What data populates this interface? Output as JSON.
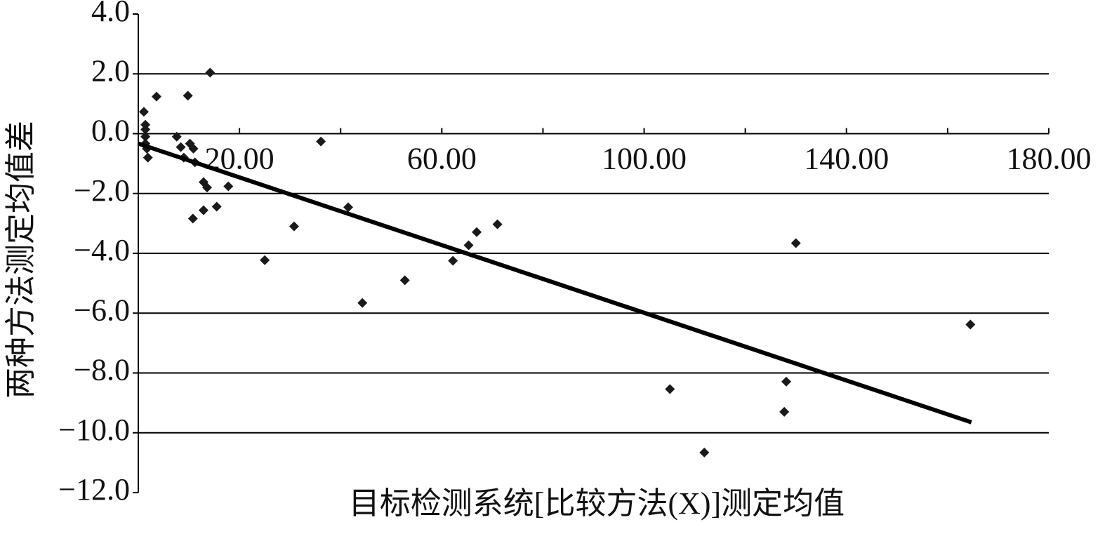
{
  "chart_data": {
    "type": "scatter",
    "xlabel": "目标检测系统[比较方法(X)]测定均值",
    "ylabel": "两种方法测定均值差",
    "xlim": [
      0,
      180
    ],
    "ylim": [
      -12,
      4
    ],
    "xticks": [
      {
        "value": 20,
        "label": "20.00"
      },
      {
        "value": 60,
        "label": "60.00"
      },
      {
        "value": 100,
        "label": "100.00"
      },
      {
        "value": 140,
        "label": "140.00"
      },
      {
        "value": 180,
        "label": "180.00"
      }
    ],
    "xminor_ticks": [
      40,
      80,
      120,
      160
    ],
    "yticks": [
      {
        "value": 4,
        "label": "4.0"
      },
      {
        "value": 2,
        "label": "2.0"
      },
      {
        "value": 0,
        "label": "0.0"
      },
      {
        "value": -2,
        "label": "−2.0"
      },
      {
        "value": -4,
        "label": "−4.0"
      },
      {
        "value": -6,
        "label": "−6.0"
      },
      {
        "value": -8,
        "label": "−8.0"
      },
      {
        "value": -10,
        "label": "−10.0"
      },
      {
        "value": -12,
        "label": "−12.0"
      }
    ],
    "grid": true,
    "color": "#1a1a1a",
    "x": [
      1.1,
      1.4,
      1.4,
      1.4,
      1.4,
      1.7,
      1.9,
      3.6,
      7.6,
      8.4,
      9.0,
      9.8,
      10.2,
      10.9,
      11.2,
      10.8,
      12.9,
      13.6,
      12.9,
      14.2,
      15.5,
      17.8,
      25.0,
      30.8,
      36.1,
      41.5,
      44.3,
      52.7,
      62.2,
      65.3,
      66.9,
      71.0,
      105.1,
      111.9,
      127.7,
      128.1,
      130.0,
      164.5
    ],
    "y": [
      0.73,
      0.3,
      0.14,
      -0.1,
      -0.33,
      -0.5,
      -0.8,
      1.24,
      -0.1,
      -0.45,
      -0.8,
      1.27,
      -0.33,
      -0.5,
      -0.96,
      -2.84,
      -1.62,
      -1.8,
      -2.56,
      2.04,
      -2.44,
      -1.76,
      -4.23,
      -3.1,
      -0.26,
      -2.46,
      -5.66,
      -4.9,
      -4.25,
      -3.73,
      -3.29,
      -3.03,
      -8.54,
      -10.66,
      -9.3,
      -8.29,
      -3.66,
      -6.38
    ],
    "trendline": {
      "x": [
        0,
        164.7
      ],
      "y": [
        -0.33,
        -9.65
      ],
      "color": "#000"
    }
  }
}
